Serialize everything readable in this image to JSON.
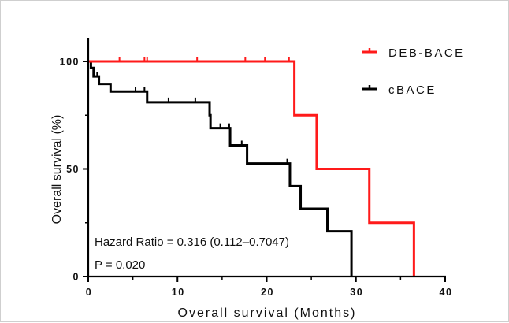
{
  "chart_data": {
    "type": "line",
    "subtype": "kaplan-meier step",
    "xlabel": "Overall survival (Months)",
    "ylabel": "Overall survival (%)",
    "xlim": [
      0,
      40
    ],
    "ylim": [
      0,
      100
    ],
    "xticks": [
      0,
      10,
      20,
      30,
      40
    ],
    "yticks": [
      0,
      50,
      100
    ],
    "grid": false,
    "legend_position": "top-right",
    "series": [
      {
        "name": "DEB-BACE",
        "color": "#ff1a1a",
        "steps": [
          [
            0,
            100
          ],
          [
            23.1,
            75
          ],
          [
            25.6,
            50
          ],
          [
            31.5,
            25
          ],
          [
            36.5,
            0
          ]
        ],
        "end": 36.5,
        "censored": [
          [
            3.5,
            100
          ],
          [
            6.3,
            100
          ],
          [
            6.6,
            100
          ],
          [
            12.2,
            100
          ],
          [
            17.6,
            100
          ],
          [
            19.8,
            100
          ],
          [
            22.5,
            100
          ]
        ]
      },
      {
        "name": "cBACE",
        "color": "#000000",
        "steps": [
          [
            0,
            100
          ],
          [
            0.3,
            97
          ],
          [
            0.6,
            93
          ],
          [
            1.2,
            89.5
          ],
          [
            2.5,
            86
          ],
          [
            6.6,
            81
          ],
          [
            13.6,
            75
          ],
          [
            13.7,
            69
          ],
          [
            15.9,
            61
          ],
          [
            17.8,
            52.5
          ],
          [
            22.6,
            42
          ],
          [
            23.8,
            31.5
          ],
          [
            26.8,
            21
          ],
          [
            29.5,
            0
          ]
        ],
        "end": 29.5,
        "censored": [
          [
            1.0,
            93
          ],
          [
            5.3,
            86
          ],
          [
            6.3,
            86
          ],
          [
            9.0,
            81
          ],
          [
            12.0,
            81
          ],
          [
            13.7,
            72
          ],
          [
            14.8,
            69
          ],
          [
            15.8,
            69
          ],
          [
            17.2,
            61
          ],
          [
            22.3,
            52.5
          ]
        ]
      }
    ],
    "annotations": [
      "Hazard Ratio = 0.316 (0.112–0.7047)",
      "P = 0.020"
    ]
  }
}
